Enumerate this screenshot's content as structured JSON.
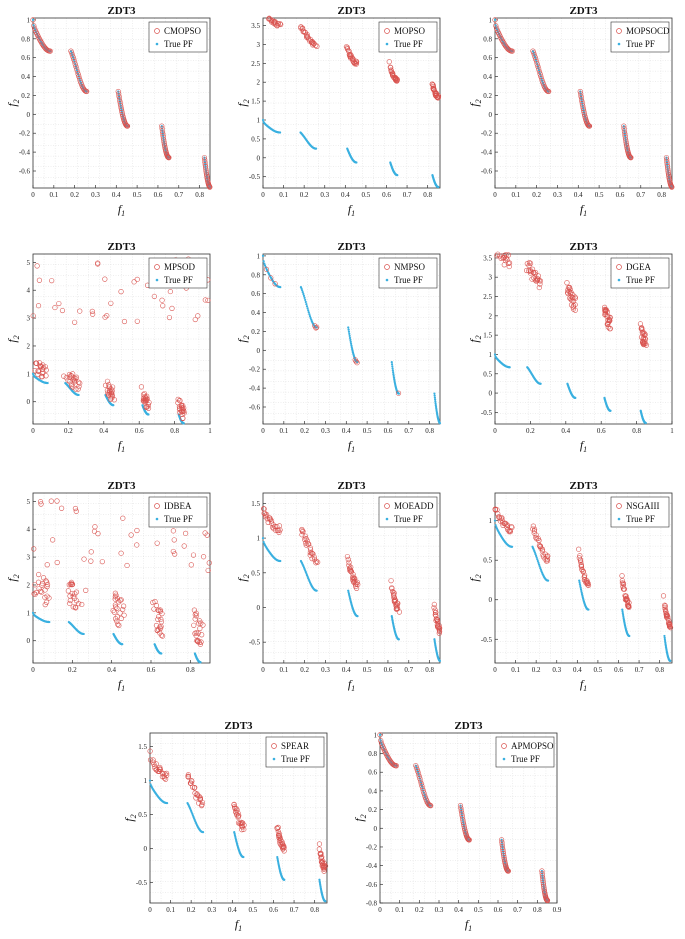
{
  "figure": {
    "colors": {
      "obtained": "#d9534f",
      "true_pf": "#3ab0e0",
      "axis": "#333333",
      "grid": "#d6d6d6"
    }
  },
  "chart_data": [
    {
      "type": "scatter",
      "title": "ZDT3",
      "xlabel": "f",
      "xlabel_sub": "1",
      "ylabel": "f",
      "ylabel_sub": "2",
      "legend": [
        "CMOPSO",
        "True PF"
      ],
      "obtained_kind": "on_pf",
      "xlim": [
        0,
        0.85
      ],
      "ylim": [
        -0.78,
        1.02
      ],
      "xticks": [
        0,
        0.1,
        0.2,
        0.3,
        0.4,
        0.5,
        0.6,
        0.7,
        0.8
      ],
      "yticks": [
        -0.6,
        -0.4,
        -0.2,
        0,
        0.2,
        0.4,
        0.6,
        0.8,
        1
      ]
    },
    {
      "type": "scatter",
      "title": "ZDT3",
      "xlabel": "f",
      "xlabel_sub": "1",
      "ylabel": "f",
      "ylabel_sub": "2",
      "legend": [
        "MOPSO",
        "True PF"
      ],
      "obtained_kind": "offset",
      "obtained_offset": 2.6,
      "offset_slope": 0.6,
      "jitter": 0.05,
      "xlim": [
        0,
        0.86
      ],
      "ylim": [
        -0.8,
        3.7
      ],
      "xticks": [
        0,
        0.1,
        0.2,
        0.3,
        0.4,
        0.5,
        0.6,
        0.7,
        0.8
      ],
      "yticks": [
        -0.5,
        0,
        0.5,
        1,
        1.5,
        2,
        2.5,
        3,
        3.5
      ]
    },
    {
      "type": "scatter",
      "title": "ZDT3",
      "xlabel": "f",
      "xlabel_sub": "1",
      "ylabel": "f",
      "ylabel_sub": "2",
      "legend": [
        "MOPSOCD",
        "True PF"
      ],
      "obtained_kind": "on_pf",
      "xlim": [
        0,
        0.85
      ],
      "ylim": [
        -0.78,
        1.02
      ],
      "xticks": [
        0,
        0.1,
        0.2,
        0.3,
        0.4,
        0.5,
        0.6,
        0.7,
        0.8
      ],
      "yticks": [
        -0.6,
        -0.4,
        -0.2,
        0,
        0.2,
        0.4,
        0.6,
        0.8,
        1
      ]
    },
    {
      "type": "scatter",
      "title": "ZDT3",
      "xlabel": "f",
      "xlabel_sub": "1",
      "ylabel": "f",
      "ylabel_sub": "2",
      "legend": [
        "MPSOD",
        "True PF"
      ],
      "obtained_kind": "scatter_high",
      "obtained_offset": 0.3,
      "jitter": 0.25,
      "high_range": [
        2.8,
        5.2
      ],
      "xlim": [
        0,
        1
      ],
      "ylim": [
        -0.8,
        5.3
      ],
      "xticks": [
        0,
        0.2,
        0.4,
        0.6,
        0.8,
        1
      ],
      "yticks": [
        0,
        1,
        2,
        3,
        4,
        5
      ]
    },
    {
      "type": "scatter",
      "title": "ZDT3",
      "xlabel": "f",
      "xlabel_sub": "1",
      "ylabel": "f",
      "ylabel_sub": "2",
      "legend": [
        "NMPSO",
        "True PF"
      ],
      "obtained_kind": "sparse_on_pf",
      "xlim": [
        0,
        0.85
      ],
      "ylim": [
        -0.78,
        1.02
      ],
      "xticks": [
        0,
        0.1,
        0.2,
        0.3,
        0.4,
        0.5,
        0.6,
        0.7,
        0.8
      ],
      "yticks": [
        -0.6,
        -0.4,
        -0.2,
        0,
        0.2,
        0.4,
        0.6,
        0.8,
        1
      ]
    },
    {
      "type": "scatter",
      "title": "ZDT3",
      "xlabel": "f",
      "xlabel_sub": "1",
      "ylabel": "f",
      "ylabel_sub": "2",
      "legend": [
        "DGEA",
        "True PF"
      ],
      "obtained_kind": "offset",
      "obtained_offset": 2.4,
      "offset_slope": 0.8,
      "jitter": 0.18,
      "xlim": [
        0,
        1
      ],
      "ylim": [
        -0.8,
        3.6
      ],
      "xticks": [
        0,
        0.2,
        0.4,
        0.6,
        0.8,
        1
      ],
      "yticks": [
        -0.5,
        0,
        0.5,
        1,
        1.5,
        2,
        2.5,
        3,
        3.5
      ]
    },
    {
      "type": "scatter",
      "title": "ZDT3",
      "xlabel": "f",
      "xlabel_sub": "1",
      "ylabel": "f",
      "ylabel_sub": "2",
      "legend": [
        "IDBEA",
        "True PF"
      ],
      "obtained_kind": "scatter_high",
      "obtained_offset": 0.9,
      "jitter": 0.5,
      "high_range": [
        2.5,
        5.1
      ],
      "xlim": [
        0,
        0.9
      ],
      "ylim": [
        -0.8,
        5.3
      ],
      "xticks": [
        0,
        0.2,
        0.4,
        0.6,
        0.8
      ],
      "yticks": [
        0,
        1,
        2,
        3,
        4,
        5
      ]
    },
    {
      "type": "scatter",
      "title": "ZDT3",
      "xlabel": "f",
      "xlabel_sub": "1",
      "ylabel": "f",
      "ylabel_sub": "2",
      "legend": [
        "MOEADD",
        "True PF"
      ],
      "obtained_kind": "offset",
      "obtained_offset": 0.45,
      "offset_slope": 0.0,
      "jitter": 0.06,
      "xlim": [
        0,
        0.85
      ],
      "ylim": [
        -0.8,
        1.65
      ],
      "xticks": [
        0,
        0.1,
        0.2,
        0.3,
        0.4,
        0.5,
        0.6,
        0.7,
        0.8
      ],
      "yticks": [
        -0.5,
        0,
        0.5,
        1,
        1.5
      ]
    },
    {
      "type": "scatter",
      "title": "ZDT3",
      "xlabel": "f",
      "xlabel_sub": "1",
      "ylabel": "f",
      "ylabel_sub": "2",
      "legend": [
        "NSGAIII",
        "True PF"
      ],
      "obtained_kind": "offset",
      "obtained_offset": 0.35,
      "offset_slope": -0.3,
      "jitter": 0.04,
      "xlim": [
        0,
        0.86
      ],
      "ylim": [
        -0.8,
        1.35
      ],
      "xticks": [
        0,
        0.1,
        0.2,
        0.3,
        0.4,
        0.5,
        0.6,
        0.7,
        0.8
      ],
      "yticks": [
        -0.5,
        0,
        0.5,
        1
      ]
    },
    {
      "type": "scatter",
      "title": "ZDT3",
      "xlabel": "f",
      "xlabel_sub": "1",
      "ylabel": "f",
      "ylabel_sub": "2",
      "legend": [
        "SPEAR",
        "True PF"
      ],
      "obtained_kind": "offset",
      "obtained_offset": 0.45,
      "offset_slope": -0.1,
      "jitter": 0.06,
      "xlim": [
        0,
        0.86
      ],
      "ylim": [
        -0.8,
        1.7
      ],
      "xticks": [
        0,
        0.1,
        0.2,
        0.3,
        0.4,
        0.5,
        0.6,
        0.7,
        0.8
      ],
      "yticks": [
        -0.5,
        0,
        0.5,
        1,
        1.5
      ]
    },
    {
      "type": "scatter",
      "title": "ZDT3",
      "xlabel": "f",
      "xlabel_sub": "1",
      "ylabel": "f",
      "ylabel_sub": "2",
      "legend": [
        "APMOPSO",
        "True PF"
      ],
      "obtained_kind": "on_pf",
      "xlim": [
        0,
        0.9
      ],
      "ylim": [
        -0.8,
        1.02
      ],
      "xticks": [
        0,
        0.1,
        0.2,
        0.3,
        0.4,
        0.5,
        0.6,
        0.7,
        0.8,
        0.9
      ],
      "yticks": [
        -0.8,
        -0.6,
        -0.4,
        -0.2,
        0,
        0.2,
        0.4,
        0.6,
        0.8,
        1
      ]
    }
  ]
}
